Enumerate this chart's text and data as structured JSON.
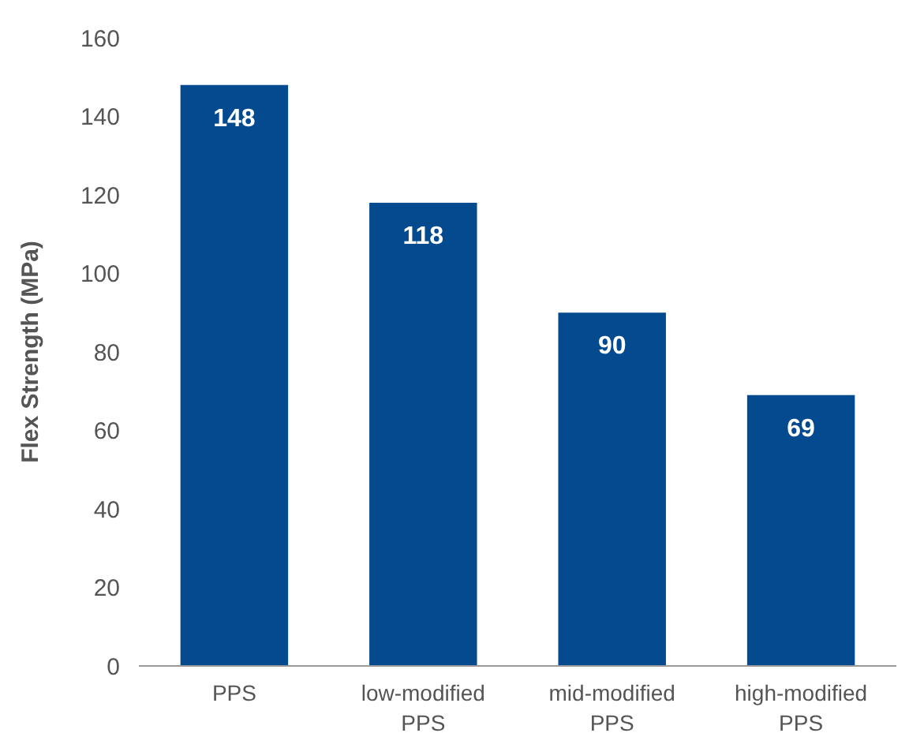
{
  "chart_data": {
    "type": "bar",
    "ylabel": "Flex Strength (MPa)",
    "categories": [
      "PPS",
      "low-modified PPS",
      "mid-modified PPS",
      "high-modified PPS"
    ],
    "values": [
      148,
      118,
      90,
      69
    ],
    "color": "#034a8f",
    "ylim": [
      0,
      160
    ],
    "yticks": [
      0,
      20,
      40,
      60,
      80,
      100,
      120,
      140,
      160
    ],
    "grid": false,
    "data_labels": true
  }
}
